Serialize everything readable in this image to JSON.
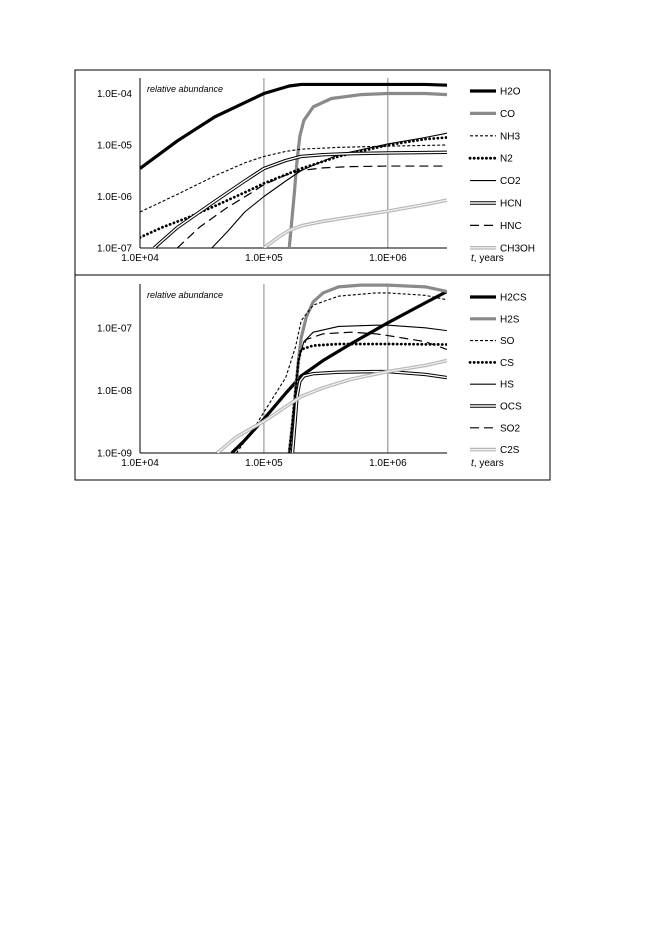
{
  "chart_data": [
    {
      "type": "line",
      "ylabel": "relative abundance",
      "xlabel_italic": "t",
      "xlabel_rest": ", years",
      "x_scale": "log",
      "y_scale": "log",
      "xlim": [
        10000,
        3000000
      ],
      "ylim": [
        1e-07,
        0.0002
      ],
      "x_ticks": [
        10000,
        100000,
        1000000
      ],
      "x_tick_labels": [
        "1.0E+04",
        "1.0E+05",
        "1.0E+06"
      ],
      "y_ticks": [
        0.0001,
        1e-05,
        1e-06,
        1e-07
      ],
      "y_tick_labels": [
        "1.0E-04",
        "1.0E-05",
        "1.0E-06",
        "1.0E-07"
      ],
      "vertical_gridlines": [
        100000,
        1000000
      ],
      "legend_position": "right",
      "series": [
        {
          "name": "H2O",
          "style": "thick-black",
          "x": [
            10000,
            20000,
            40000,
            100000,
            160000,
            200000,
            500000,
            1000000,
            2000000,
            3000000
          ],
          "y": [
            3.5e-06,
            1.2e-05,
            3.5e-05,
            0.0001,
            0.00014,
            0.00015,
            0.00015,
            0.00015,
            0.00015,
            0.000145
          ]
        },
        {
          "name": "CO",
          "style": "thick-gray",
          "x": [
            160000,
            175000,
            185000,
            195000,
            210000,
            250000,
            350000,
            600000,
            1000000,
            2000000,
            3000000
          ],
          "y": [
            1e-07,
            1e-06,
            5e-06,
            1.5e-05,
            3e-05,
            5.5e-05,
            8e-05,
            9.5e-05,
            0.0001,
            0.0001,
            9.5e-05
          ]
        },
        {
          "name": "NH3",
          "style": "dashed-fine",
          "x": [
            10000,
            20000,
            40000,
            70000,
            100000,
            150000,
            200000,
            400000,
            1000000,
            3000000
          ],
          "y": [
            5e-07,
            1.1e-06,
            2.5e-06,
            4.5e-06,
            6e-06,
            7.5e-06,
            8.3e-06,
            9e-06,
            9.5e-06,
            1e-05
          ]
        },
        {
          "name": "N2",
          "style": "dotted",
          "x": [
            10000,
            15000,
            25000,
            40000,
            70000,
            100000,
            200000,
            400000,
            1000000,
            2000000,
            3000000
          ],
          "y": [
            1.6e-07,
            2.5e-07,
            4e-07,
            6.5e-07,
            1.2e-06,
            1.8e-06,
            3.5e-06,
            6e-06,
            1e-05,
            1.3e-05,
            1.4e-05
          ]
        },
        {
          "name": "CO2",
          "style": "thin-black",
          "x": [
            38000,
            50000,
            70000,
            100000,
            150000,
            200000,
            400000,
            1000000,
            2000000,
            3000000
          ],
          "y": [
            1e-07,
            2e-07,
            5e-07,
            1e-06,
            2e-06,
            3.2e-06,
            6.5e-06,
            1.05e-05,
            1.4e-05,
            1.7e-05
          ]
        },
        {
          "name": "HCN",
          "style": "double-line",
          "x": [
            13000,
            20000,
            40000,
            70000,
            100000,
            150000,
            200000,
            300000,
            500000,
            1000000,
            3000000
          ],
          "y": [
            1e-07,
            2.5e-07,
            8e-07,
            2e-06,
            3.5e-06,
            5e-06,
            6e-06,
            6.5e-06,
            6.8e-06,
            7e-06,
            7.2e-06
          ]
        },
        {
          "name": "HNC",
          "style": "long-dash",
          "x": [
            20000,
            30000,
            50000,
            80000,
            100000,
            150000,
            200000,
            300000,
            500000,
            1000000,
            3000000
          ],
          "y": [
            1e-07,
            2.5e-07,
            6e-07,
            1.2e-06,
            1.7e-06,
            2.6e-06,
            3.2e-06,
            3.6e-06,
            3.8e-06,
            3.9e-06,
            3.9e-06
          ]
        },
        {
          "name": "CH3OH",
          "style": "light-gray-double",
          "x": [
            100000,
            130000,
            160000,
            200000,
            300000,
            500000,
            1000000,
            2000000,
            3000000
          ],
          "y": [
            1e-07,
            1.6e-07,
            2.2e-07,
            2.7e-07,
            3.3e-07,
            4e-07,
            5.2e-07,
            7e-07,
            8.5e-07
          ]
        }
      ]
    },
    {
      "type": "line",
      "ylabel": "relative abundance",
      "xlabel_italic": "t",
      "xlabel_rest": ", years",
      "x_scale": "log",
      "y_scale": "log",
      "xlim": [
        10000,
        3000000
      ],
      "ylim": [
        1e-09,
        5e-07
      ],
      "x_ticks": [
        10000,
        100000,
        1000000
      ],
      "x_tick_labels": [
        "1.0E+04",
        "1.0E+05",
        "1.0E+06"
      ],
      "y_ticks": [
        1e-07,
        1e-08,
        1e-09
      ],
      "y_tick_labels": [
        "1.0E-07",
        "1.0E-08",
        "1.0E-09"
      ],
      "vertical_gridlines": [
        100000,
        1000000
      ],
      "legend_position": "right",
      "series": [
        {
          "name": "H2CS",
          "style": "thick-black",
          "x": [
            55000,
            70000,
            100000,
            150000,
            200000,
            300000,
            500000,
            1000000,
            2000000,
            3000000
          ],
          "y": [
            1e-09,
            1.6e-09,
            3.5e-09,
            9e-09,
            1.7e-08,
            3e-08,
            5.5e-08,
            1.2e-07,
            2.5e-07,
            3.8e-07
          ]
        },
        {
          "name": "H2S",
          "style": "thick-gray",
          "x": [
            160000,
            170000,
            180000,
            190000,
            200000,
            220000,
            250000,
            300000,
            400000,
            600000,
            1000000,
            2000000,
            3000000
          ],
          "y": [
            1e-09,
            3e-09,
            1e-08,
            3e-08,
            7e-08,
            1.5e-07,
            2.6e-07,
            3.6e-07,
            4.5e-07,
            4.8e-07,
            4.8e-07,
            4.5e-07,
            3.8e-07
          ]
        },
        {
          "name": "SO",
          "style": "dashed-fine",
          "x": [
            60000,
            80000,
            100000,
            120000,
            150000,
            180000,
            200000,
            250000,
            400000,
            800000,
            1000000,
            2000000,
            3000000
          ],
          "y": [
            1e-09,
            2.2e-09,
            4.5e-09,
            8e-09,
            1.6e-08,
            5e-08,
            1.3e-07,
            2.3e-07,
            3.2e-07,
            3.6e-07,
            3.6e-07,
            3.3e-07,
            2.8e-07
          ]
        },
        {
          "name": "CS",
          "style": "dotted",
          "x": [
            160000,
            170000,
            180000,
            190000,
            200000,
            250000,
            400000,
            1000000,
            3000000
          ],
          "y": [
            1e-09,
            3e-09,
            1e-08,
            3e-08,
            4.5e-08,
            5.2e-08,
            5.5e-08,
            5.5e-08,
            5.4e-08
          ]
        },
        {
          "name": "HS",
          "style": "thin-black",
          "x": [
            160000,
            170000,
            180000,
            190000,
            210000,
            250000,
            400000,
            800000,
            1000000,
            2000000,
            3000000
          ],
          "y": [
            1e-09,
            3e-09,
            1e-08,
            3e-08,
            6e-08,
            8.5e-08,
            1.05e-07,
            1.1e-07,
            1.1e-07,
            1e-07,
            9e-08
          ]
        },
        {
          "name": "OCS",
          "style": "double-line",
          "x": [
            170000,
            178000,
            185000,
            195000,
            210000,
            250000,
            400000,
            800000,
            1000000,
            2000000,
            3000000
          ],
          "y": [
            1e-09,
            3e-09,
            8e-09,
            1.4e-08,
            1.7e-08,
            1.85e-08,
            1.95e-08,
            2e-08,
            2e-08,
            1.8e-08,
            1.6e-08
          ]
        },
        {
          "name": "SO2",
          "style": "long-dash",
          "x": [
            160000,
            170000,
            180000,
            190000,
            220000,
            300000,
            500000,
            800000,
            1000000,
            2000000,
            3000000
          ],
          "y": [
            1e-09,
            3e-09,
            1e-08,
            3.5e-08,
            6.5e-08,
            8e-08,
            8.5e-08,
            8e-08,
            7.5e-08,
            6e-08,
            4.5e-08
          ]
        },
        {
          "name": "C2S",
          "style": "light-gray-double",
          "x": [
            42000,
            60000,
            80000,
            100000,
            150000,
            200000,
            300000,
            500000,
            1000000,
            2000000,
            3000000
          ],
          "y": [
            1e-09,
            1.8e-09,
            2.5e-09,
            3.2e-09,
            5.5e-09,
            8e-09,
            1.1e-08,
            1.5e-08,
            2e-08,
            2.5e-08,
            3e-08
          ]
        }
      ]
    }
  ]
}
